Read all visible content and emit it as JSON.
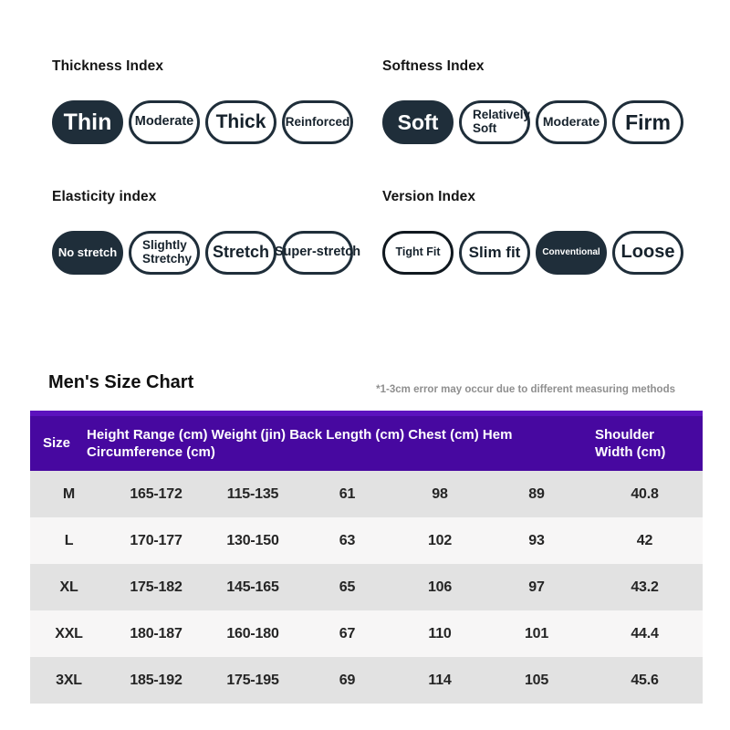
{
  "colors": {
    "selected_pill_bg": "#1F2E3A",
    "pill_border": "#1F2E3A",
    "table_header_bg": "#4708A0",
    "table_header_top_strip": "#5C12BD",
    "row_bg": "#F7F6F6",
    "row_alt_bg": "#E2E2E2",
    "note_text": "#8F8F8F"
  },
  "attributes": {
    "sections": [
      {
        "title": "Thickness Index",
        "options": [
          {
            "label": "Thin",
            "selected": true
          },
          {
            "label": "Moderate",
            "selected": false
          },
          {
            "label": "Thick",
            "selected": false
          },
          {
            "label": "Reinforced",
            "selected": false
          }
        ]
      },
      {
        "title": "Softness Index",
        "options": [
          {
            "label": "Soft",
            "selected": true
          },
          {
            "label": "Relatively Soft",
            "selected": false
          },
          {
            "label": "Moderate",
            "selected": false
          },
          {
            "label": "Firm",
            "selected": false
          }
        ]
      },
      {
        "title": "Elasticity index",
        "options": [
          {
            "label": "No stretch",
            "selected": true
          },
          {
            "label": "Slightly Stretchy",
            "selected": false
          },
          {
            "label": "Stretch",
            "selected": false
          },
          {
            "label": "Super-stretch",
            "selected": false
          }
        ]
      },
      {
        "title": "Version Index",
        "options": [
          {
            "label": "Tight Fit",
            "selected": false
          },
          {
            "label": "Slim fit",
            "selected": false
          },
          {
            "label": "Conventional",
            "selected": true
          },
          {
            "label": "Loose",
            "selected": false
          }
        ]
      }
    ]
  },
  "size_chart": {
    "title": "Men's Size Chart",
    "note": "*1-3cm error may occur due to different measuring methods",
    "header": {
      "size": "Size",
      "measurements": "Height Range (cm) Weight (jin) Back Length (cm) Chest (cm) Hem Circumference (cm)",
      "shoulder": "Shoulder Width (cm)"
    },
    "rows": [
      [
        "M",
        "165-172",
        "115-135",
        "61",
        "98",
        "89",
        "40.8"
      ],
      [
        "L",
        "170-177",
        "130-150",
        "63",
        "102",
        "93",
        "42"
      ],
      [
        "XL",
        "175-182",
        "145-165",
        "65",
        "106",
        "97",
        "43.2"
      ],
      [
        "XXL",
        "180-187",
        "160-180",
        "67",
        "110",
        "101",
        "44.4"
      ],
      [
        "3XL",
        "185-192",
        "175-195",
        "69",
        "114",
        "105",
        "45.6"
      ]
    ]
  }
}
